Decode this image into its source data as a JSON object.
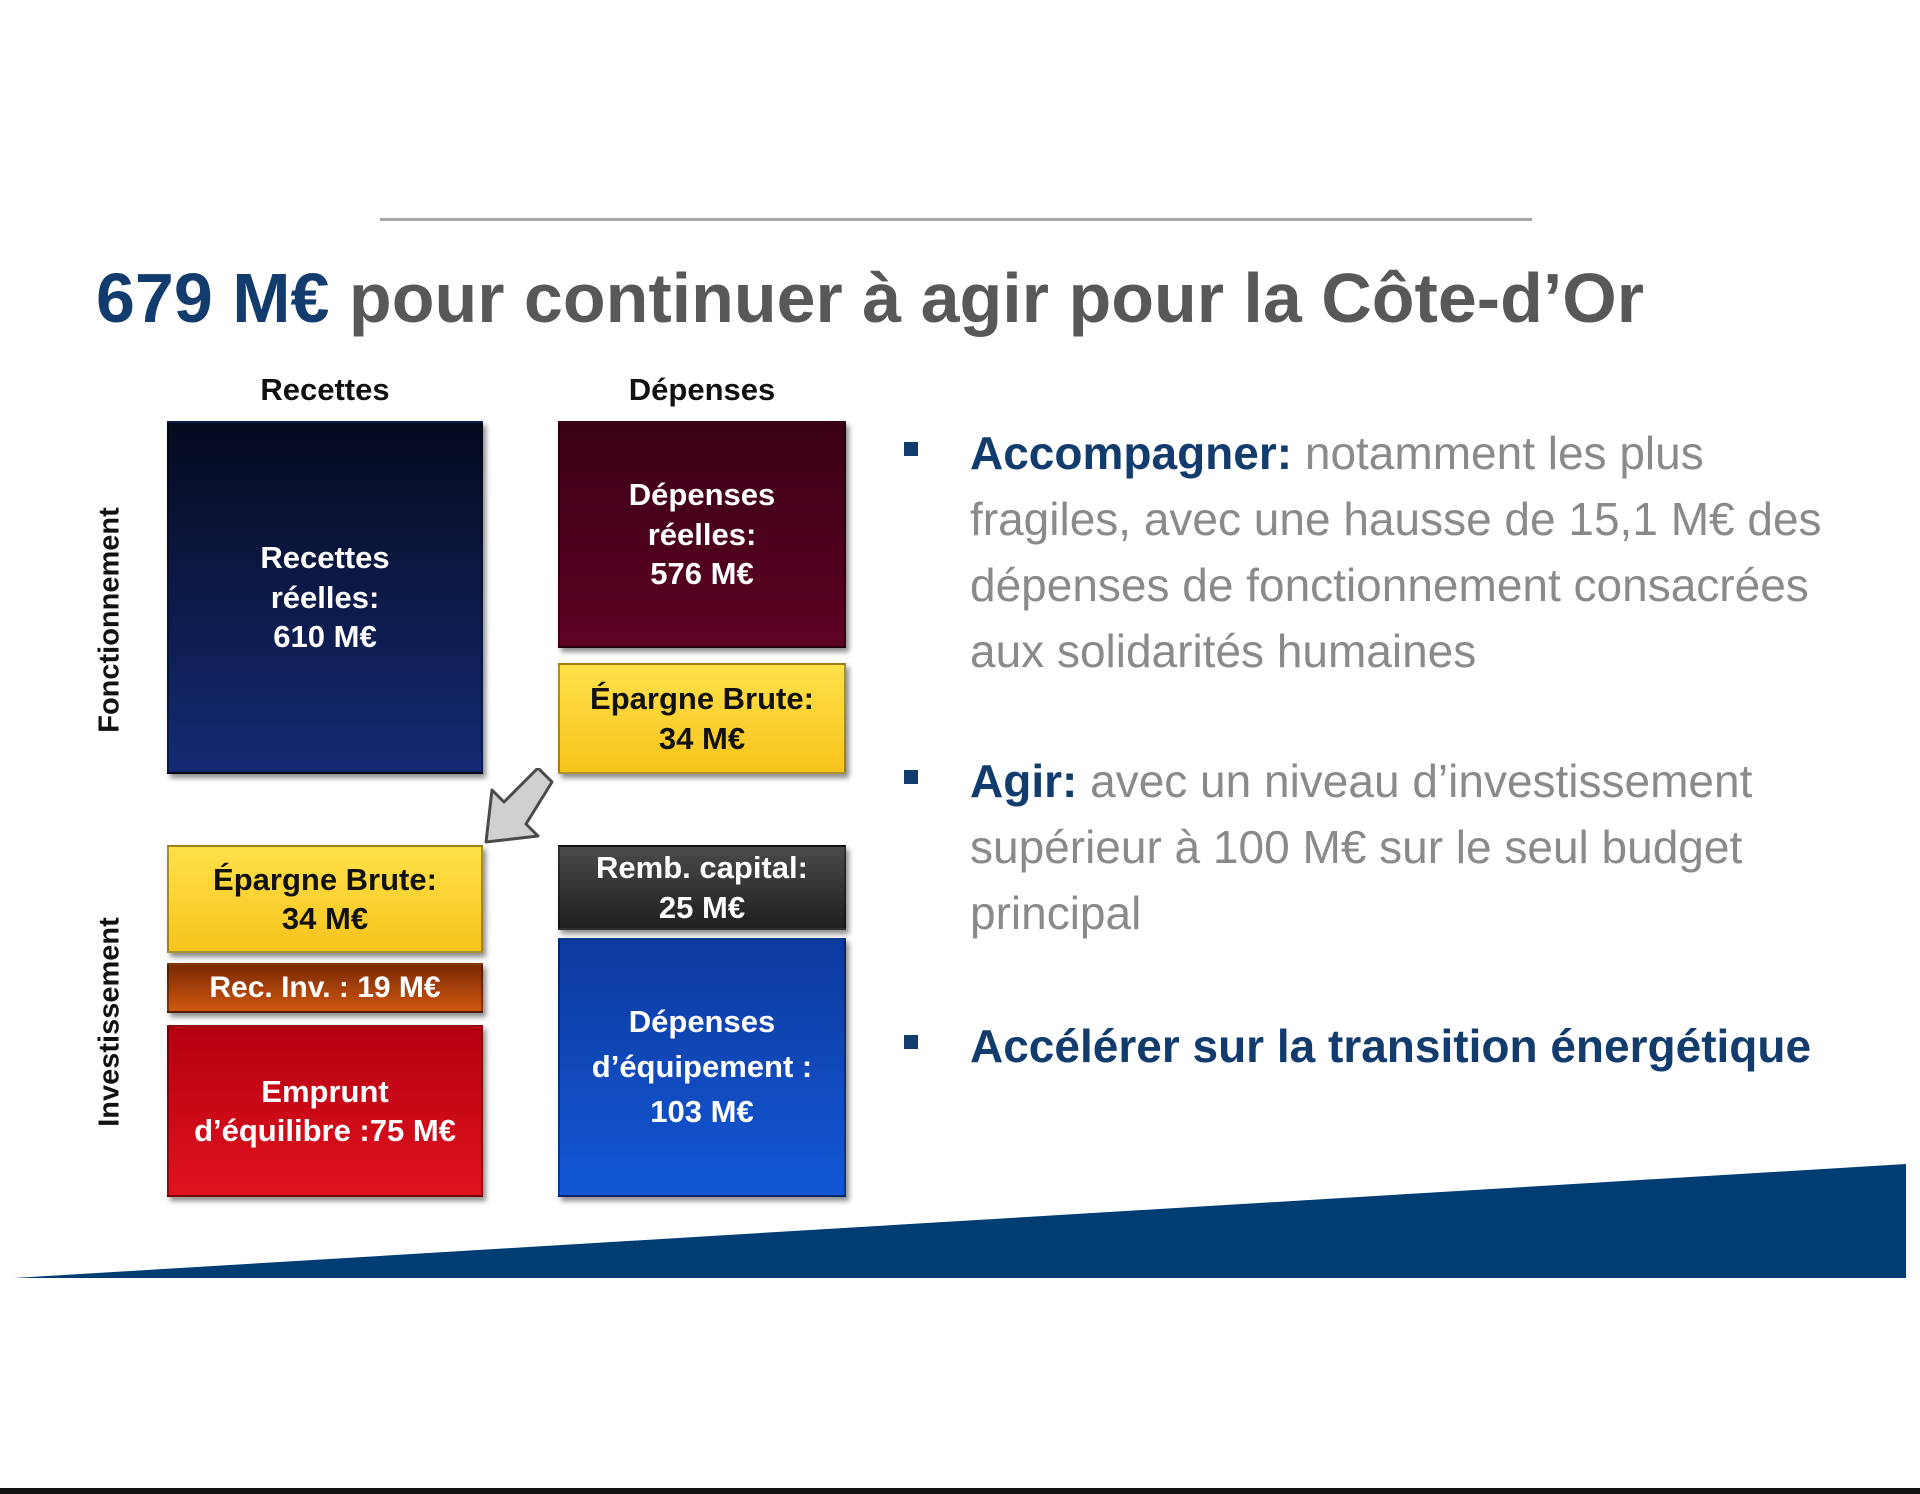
{
  "title": {
    "accent": "679 M€",
    "rest": " pour continuer à agir pour la Côte-d’Or"
  },
  "columns": {
    "recettes": "Recettes",
    "depenses": "Dépenses"
  },
  "rows": {
    "fonctionnement": "Fonctionnement",
    "investissement": "Investissement"
  },
  "boxes": {
    "recettes_reelles": "Recettes\nréelles:\n610 M€",
    "depenses_reelles": "Dépenses\nréelles:\n576 M€",
    "epargne_brute_fonct": "Épargne Brute:\n34 M€",
    "epargne_brute_inv": "Épargne Brute:\n34 M€",
    "rec_inv": "Rec. Inv. : 19 M€",
    "emprunt": "Emprunt\nd’équilibre :75 M€",
    "remb_capital": "Remb. capital:\n25 M€",
    "depenses_equipement": "Dépenses\nd’équipement :\n103 M€"
  },
  "colors": {
    "accent": "#123c6e",
    "body_text": "#8a8a8a",
    "title_text": "#585858",
    "wedge": "#003d73"
  },
  "bullets": [
    {
      "lead": "Accompagner:",
      "text": " notamment les plus fragiles, avec une hausse de 15,1 M€ des dépenses de fonctionnement consacrées aux solidarités humaines"
    },
    {
      "lead": "Agir:",
      "text": " avec un niveau d’investissement supérieur à 100 M€ sur le seul budget principal"
    },
    {
      "lead": "Accélérer sur la transition énergétique",
      "text": ""
    }
  ]
}
